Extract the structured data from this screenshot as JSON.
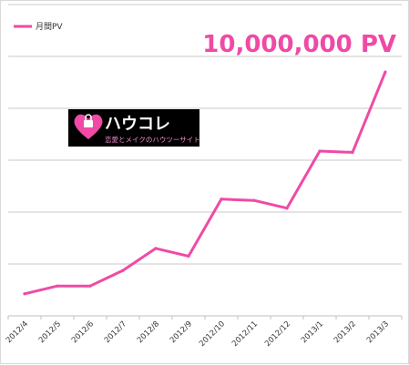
{
  "chart_data": {
    "type": "line",
    "categories": [
      "2012/4",
      "2012/5",
      "2012/6",
      "2012/7",
      "2012/8",
      "2012/9",
      "2012/10",
      "2012/11",
      "2012/12",
      "2013/1",
      "2013/2",
      "2013/3"
    ],
    "series": [
      {
        "name": "月間PV",
        "color": "#ef4aa5",
        "values": [
          1.7,
          2.3,
          2.3,
          3.5,
          5.2,
          4.6,
          9.0,
          8.9,
          8.3,
          12.7,
          12.6,
          18.8
        ]
      }
    ],
    "ylim": [
      0,
      24
    ],
    "y_gridlines": [
      4,
      8,
      12,
      16,
      20,
      24
    ],
    "y_tick_labels_shown": false,
    "grid": true,
    "legend_position": "top-left",
    "annotation": {
      "text": "10,000,000 PV",
      "color": "#ef4aa5"
    }
  },
  "logo": {
    "title": "ハウコレ",
    "subtitle": "恋愛とメイクのハウツーサイト",
    "background": "#000000",
    "accent": "#ef4aa5",
    "icon": "heart-lock-icon"
  }
}
